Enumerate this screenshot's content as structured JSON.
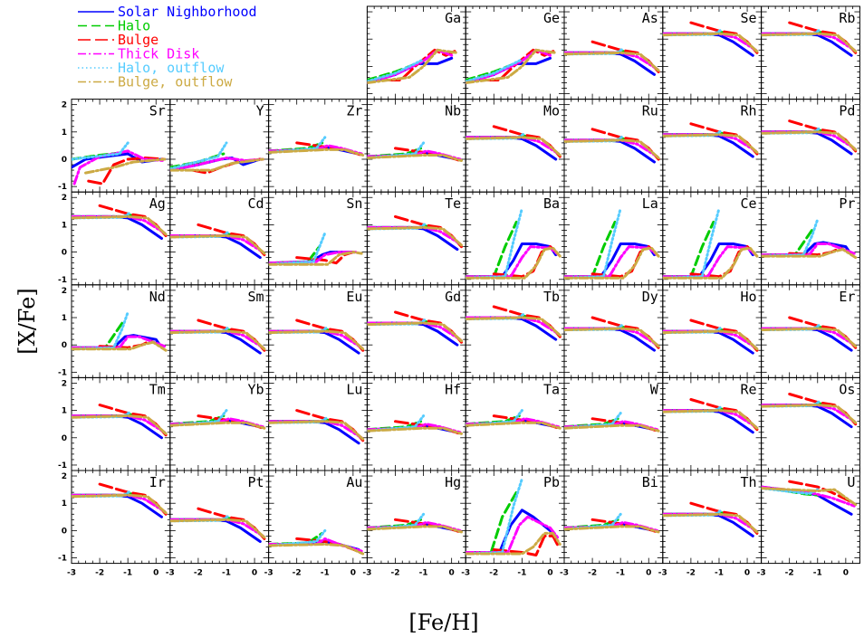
{
  "chart_data": {
    "type": "line",
    "xlabel": "[Fe/H]",
    "ylabel": "[X/Fe]",
    "xlim": [
      -3,
      0.5
    ],
    "ylim": [
      -1.2,
      2.2
    ],
    "xticks": [
      "-3",
      "-2",
      "-1",
      "0"
    ],
    "yticks": [
      "-1",
      "0",
      "1",
      "2"
    ],
    "legend_placement": "top-left",
    "legend": [
      {
        "name": "Solar Nighborhood",
        "color": "#0000ff",
        "style": "solid"
      },
      {
        "name": "Halo",
        "color": "#00cc00",
        "style": "dashed"
      },
      {
        "name": "Bulge",
        "color": "#ff0000",
        "style": "longdash"
      },
      {
        "name": "Thick Disk",
        "color": "#ff00ff",
        "style": "dashdot"
      },
      {
        "name": "Halo, outflow",
        "color": "#55ccff",
        "style": "dotted"
      },
      {
        "name": "Bulge, outflow",
        "color": "#ccaa44",
        "style": "dashdot"
      }
    ],
    "panels": [
      {
        "el": "Ga",
        "row": 0,
        "col": 3,
        "p": "ga"
      },
      {
        "el": "Ge",
        "row": 0,
        "col": 4,
        "p": "ga"
      },
      {
        "el": "As",
        "row": 0,
        "col": 5,
        "p": "flat",
        "lvl": 0.5
      },
      {
        "el": "Se",
        "row": 0,
        "col": 6,
        "p": "flat",
        "lvl": 1.2
      },
      {
        "el": "Rb",
        "row": 0,
        "col": 7,
        "p": "flat",
        "lvl": 1.2
      },
      {
        "el": "Sr",
        "row": 1,
        "col": 0,
        "p": "sr"
      },
      {
        "el": "Y",
        "row": 1,
        "col": 1,
        "p": "y"
      },
      {
        "el": "Zr",
        "row": 1,
        "col": 2,
        "p": "mild",
        "lvl": 0.3
      },
      {
        "el": "Nb",
        "row": 1,
        "col": 3,
        "p": "mild",
        "lvl": 0.1
      },
      {
        "el": "Mo",
        "row": 1,
        "col": 4,
        "p": "flat",
        "lvl": 0.8
      },
      {
        "el": "Ru",
        "row": 1,
        "col": 5,
        "p": "flat",
        "lvl": 0.7
      },
      {
        "el": "Rh",
        "row": 1,
        "col": 6,
        "p": "flat",
        "lvl": 0.9
      },
      {
        "el": "Pd",
        "row": 1,
        "col": 7,
        "p": "flat",
        "lvl": 1.0
      },
      {
        "el": "Ag",
        "row": 2,
        "col": 0,
        "p": "flat",
        "lvl": 1.3
      },
      {
        "el": "Cd",
        "row": 2,
        "col": 1,
        "p": "flat",
        "lvl": 0.6
      },
      {
        "el": "Sn",
        "row": 2,
        "col": 2,
        "p": "sn"
      },
      {
        "el": "Te",
        "row": 2,
        "col": 3,
        "p": "flat",
        "lvl": 0.9
      },
      {
        "el": "Ba",
        "row": 2,
        "col": 4,
        "p": "ba"
      },
      {
        "el": "La",
        "row": 2,
        "col": 5,
        "p": "ba"
      },
      {
        "el": "Ce",
        "row": 2,
        "col": 6,
        "p": "ba"
      },
      {
        "el": "Pr",
        "row": 2,
        "col": 7,
        "p": "pr"
      },
      {
        "el": "Nd",
        "row": 3,
        "col": 0,
        "p": "pr"
      },
      {
        "el": "Sm",
        "row": 3,
        "col": 1,
        "p": "flat",
        "lvl": 0.5
      },
      {
        "el": "Eu",
        "row": 3,
        "col": 2,
        "p": "flat",
        "lvl": 0.5
      },
      {
        "el": "Gd",
        "row": 3,
        "col": 3,
        "p": "flat",
        "lvl": 0.8
      },
      {
        "el": "Tb",
        "row": 3,
        "col": 4,
        "p": "flat",
        "lvl": 1.0
      },
      {
        "el": "Dy",
        "row": 3,
        "col": 5,
        "p": "flat",
        "lvl": 0.6
      },
      {
        "el": "Ho",
        "row": 3,
        "col": 6,
        "p": "flat",
        "lvl": 0.5
      },
      {
        "el": "Er",
        "row": 3,
        "col": 7,
        "p": "flat",
        "lvl": 0.6
      },
      {
        "el": "Tm",
        "row": 4,
        "col": 0,
        "p": "flat",
        "lvl": 0.8
      },
      {
        "el": "Yb",
        "row": 4,
        "col": 1,
        "p": "mild",
        "lvl": 0.5
      },
      {
        "el": "Lu",
        "row": 4,
        "col": 2,
        "p": "flat",
        "lvl": 0.6
      },
      {
        "el": "Hf",
        "row": 4,
        "col": 3,
        "p": "mild",
        "lvl": 0.3
      },
      {
        "el": "Ta",
        "row": 4,
        "col": 4,
        "p": "mild",
        "lvl": 0.5
      },
      {
        "el": "W",
        "row": 4,
        "col": 5,
        "p": "mild",
        "lvl": 0.4
      },
      {
        "el": "Re",
        "row": 4,
        "col": 6,
        "p": "flat",
        "lvl": 1.0
      },
      {
        "el": "Os",
        "row": 4,
        "col": 7,
        "p": "flat",
        "lvl": 1.2
      },
      {
        "el": "Ir",
        "row": 5,
        "col": 0,
        "p": "flat",
        "lvl": 1.3
      },
      {
        "el": "Pt",
        "row": 5,
        "col": 1,
        "p": "flat",
        "lvl": 0.4
      },
      {
        "el": "Au",
        "row": 5,
        "col": 2,
        "p": "au"
      },
      {
        "el": "Hg",
        "row": 5,
        "col": 3,
        "p": "mild",
        "lvl": 0.1
      },
      {
        "el": "Pb",
        "row": 5,
        "col": 4,
        "p": "pb"
      },
      {
        "el": "Bi",
        "row": 5,
        "col": 5,
        "p": "mild",
        "lvl": 0.1
      },
      {
        "el": "Th",
        "row": 5,
        "col": 6,
        "p": "flat",
        "lvl": 0.6
      },
      {
        "el": "U",
        "row": 5,
        "col": 7,
        "p": "u"
      }
    ]
  }
}
